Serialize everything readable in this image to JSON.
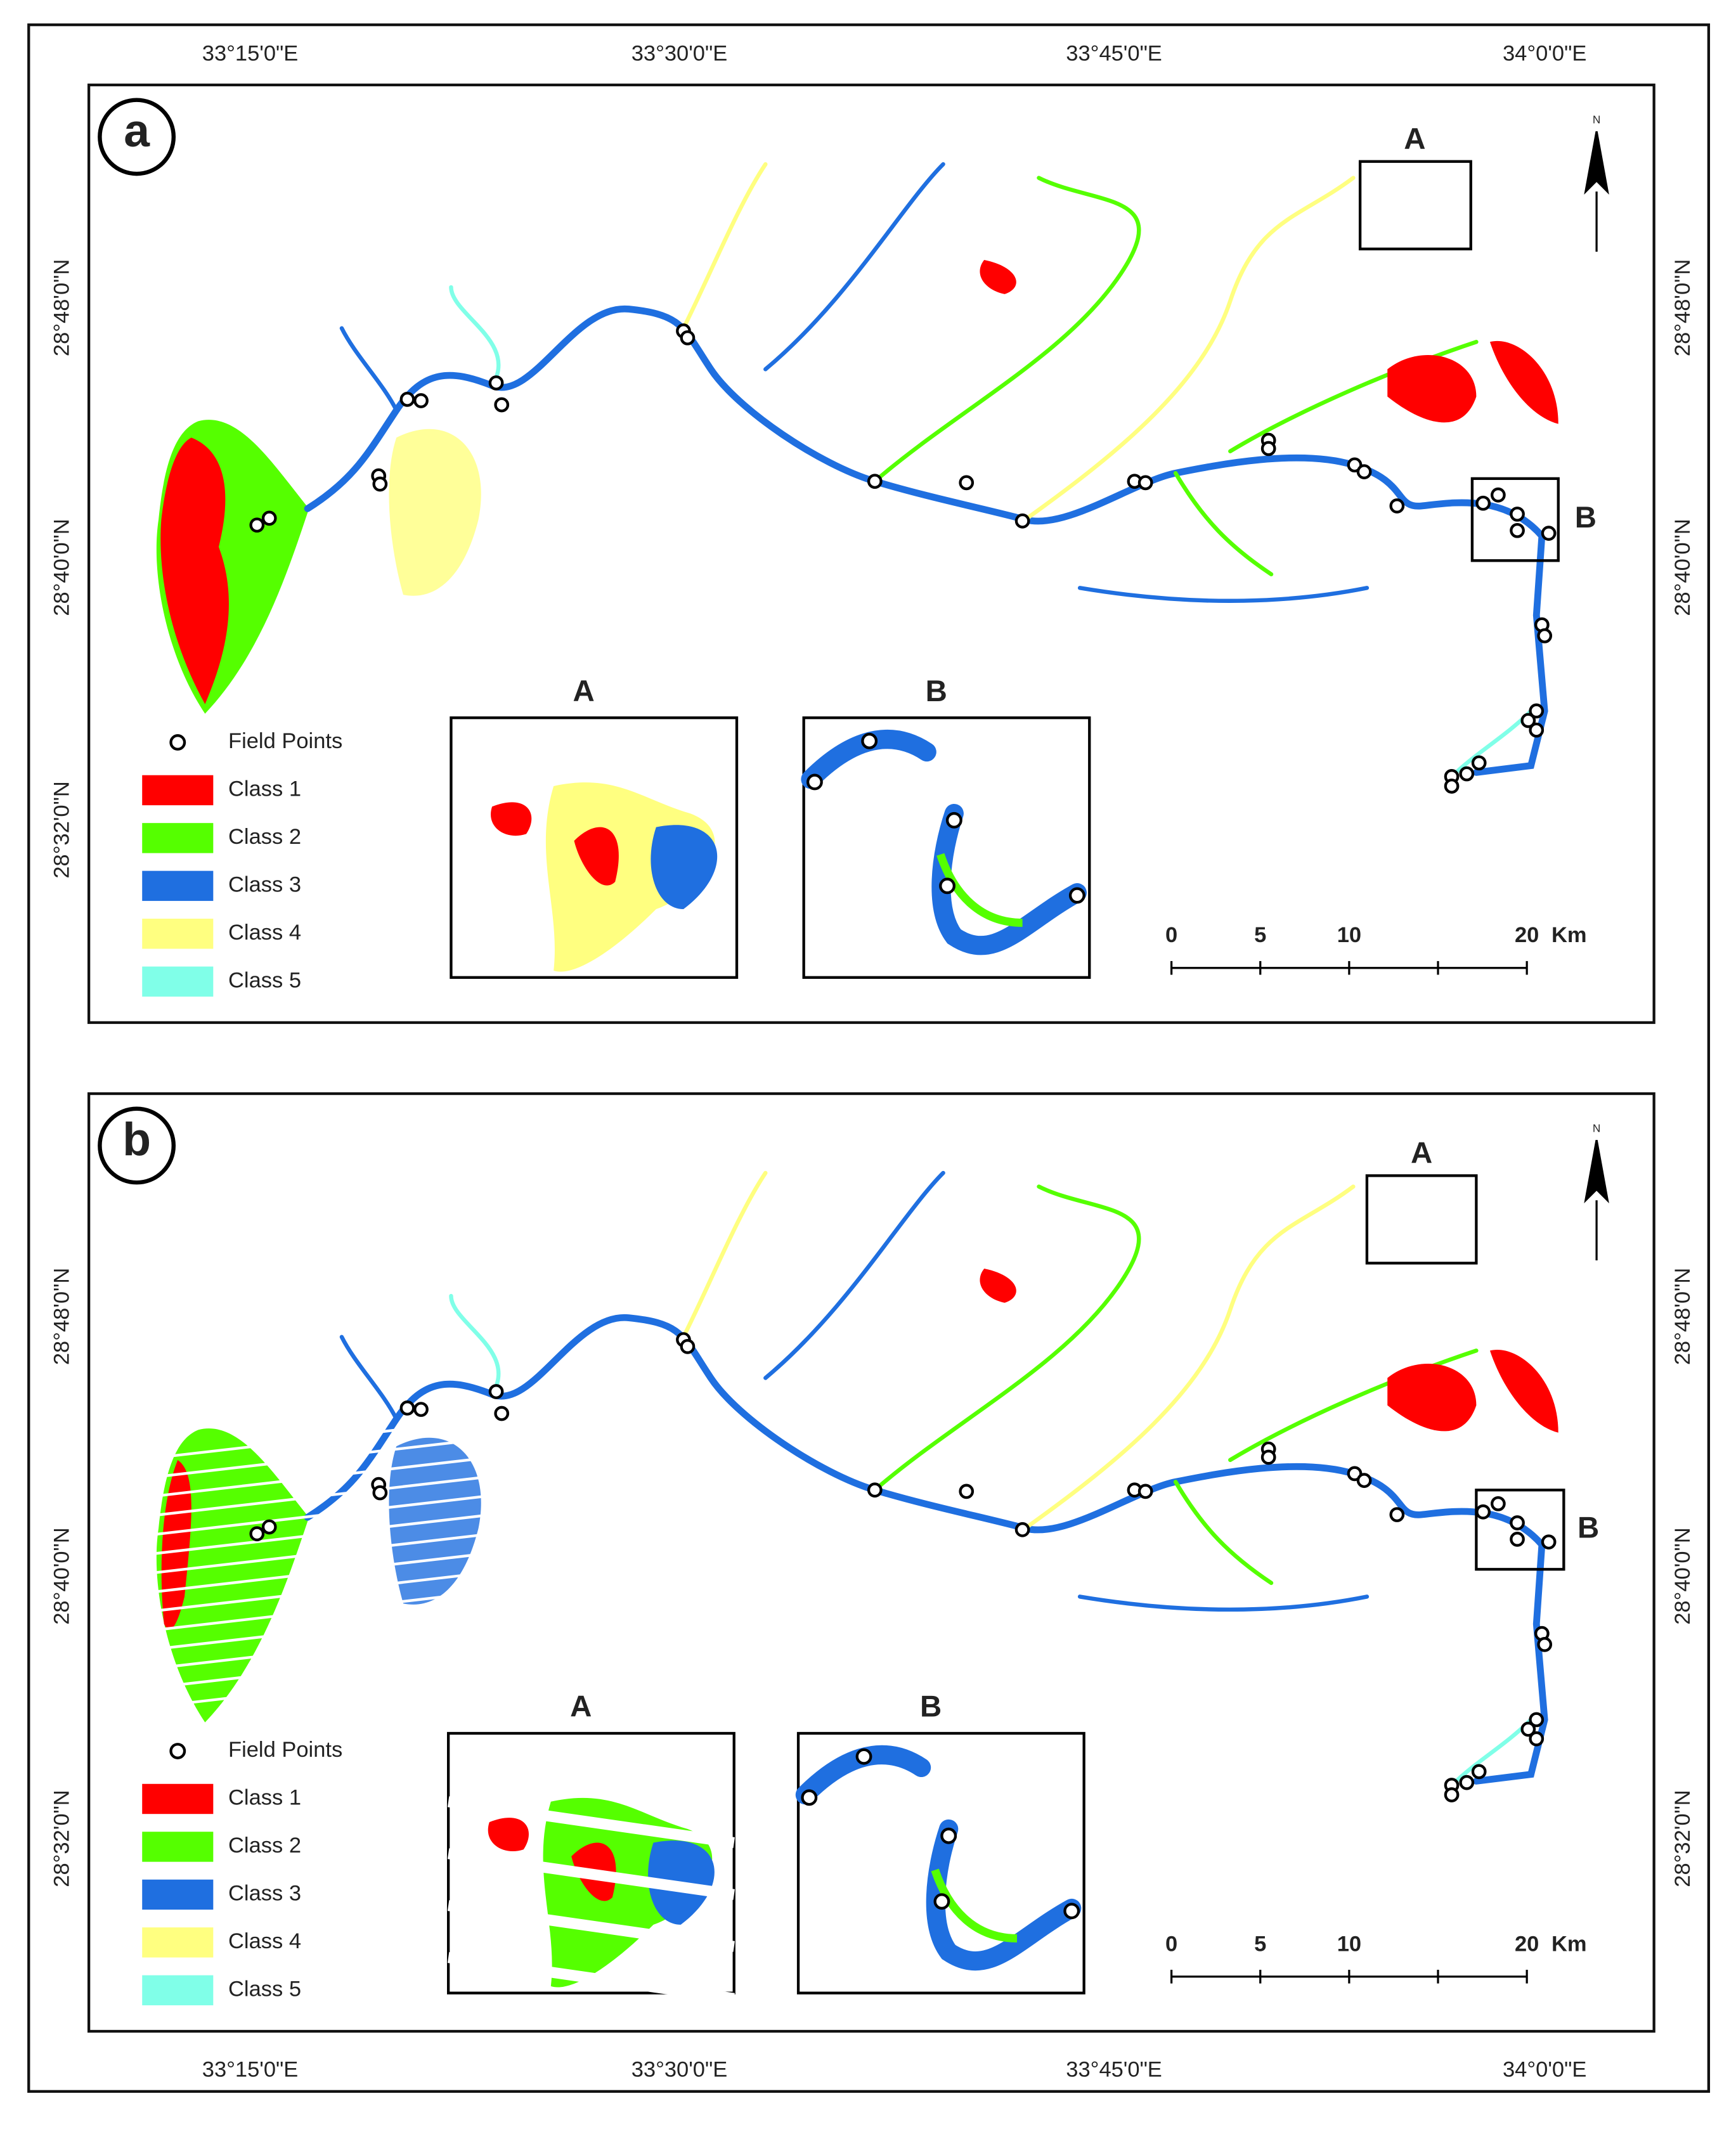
{
  "panels": [
    {
      "label": "a",
      "lon_labels": [
        "33°15'0\"E",
        "33°30'0\"E",
        "33°45'0\"E",
        "34°0'0\"E"
      ],
      "lat_labels_left": [
        "28°48'0\"N",
        "28°40'0\"N",
        "28°32'0\"N"
      ],
      "lat_labels_right": [
        "28°48'0\"N",
        "28°40'0\"N"
      ],
      "box_labels": [
        "A",
        "B"
      ],
      "inset_labels": [
        "A",
        "B"
      ],
      "legend": {
        "points": "Field Points",
        "classes": [
          {
            "name": "Class 1",
            "color": "#ff0000"
          },
          {
            "name": "Class 2",
            "color": "#55ff00"
          },
          {
            "name": "Class 3",
            "color": "#1f6fe0"
          },
          {
            "name": "Class 4",
            "color": "#ffff80"
          },
          {
            "name": "Class 5",
            "color": "#80ffe8"
          }
        ]
      },
      "scale_bar": {
        "ticks": [
          0,
          5,
          10,
          20
        ],
        "unit": "Km"
      },
      "north": "N"
    },
    {
      "label": "b",
      "lon_labels": [
        "33°15'0\"E",
        "33°30'0\"E",
        "33°45'0\"E",
        "34°0'0\"E"
      ],
      "lat_labels_left": [
        "28°48'0\"N",
        "28°40'0\"N",
        "28°32'0\"N"
      ],
      "lat_labels_right": [
        "28°48'0\"N",
        "28°40'0\"N",
        "28°32'0\"N"
      ],
      "box_labels": [
        "A",
        "B"
      ],
      "inset_labels": [
        "A",
        "B"
      ],
      "legend": {
        "points": "Field Points",
        "classes": [
          {
            "name": "Class 1",
            "color": "#ff0000"
          },
          {
            "name": "Class 2",
            "color": "#55ff00"
          },
          {
            "name": "Class 3",
            "color": "#1f6fe0"
          },
          {
            "name": "Class 4",
            "color": "#ffff80"
          },
          {
            "name": "Class 5",
            "color": "#80ffe8"
          }
        ]
      },
      "scale_bar": {
        "ticks": [
          0,
          5,
          10,
          20
        ],
        "unit": "Km"
      },
      "north": "N"
    }
  ]
}
